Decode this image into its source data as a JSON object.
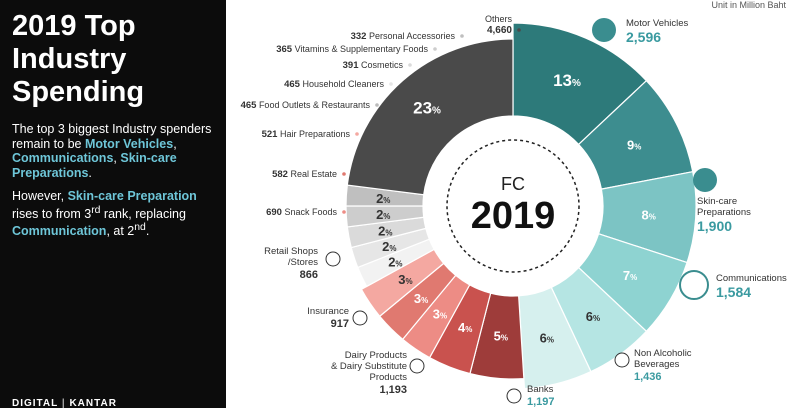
{
  "panel": {
    "title_line1": "2019 Top",
    "title_line2": "Industry",
    "title_line3": "Spending",
    "p1_text1": "The top 3 biggest Industry spenders remain to be ",
    "p1_hl1": "Motor Vehicles",
    "p1_text2": ", ",
    "p1_hl2": "Communications",
    "p1_text3": ", ",
    "p1_hl3": "Skin-care Preparations",
    "p1_text4": ".",
    "p2_text1": "However, ",
    "p2_hl1": "Skin-care Preparation",
    "p2_text2": " rises to from 3",
    "p2_sup": "rd",
    "p2_text3": " rank, replacing ",
    "p2_hl2": "Communication",
    "p2_text4": ", at 2",
    "p2_sup2": "nd",
    "p2_text5": ".",
    "footer_left": "DIGITAL",
    "footer_sep": "|",
    "footer_right": "KANTAR"
  },
  "unit_note": "Unit in Million Baht",
  "chart_data": {
    "type": "pie",
    "donut": true,
    "center_label_top": "FC",
    "center_label_main": "2019",
    "pct_suffix": "%",
    "slices": [
      {
        "name": "Motor Vehicles",
        "pct": 13,
        "value": "2,596",
        "color": "#2d7a7a",
        "icon": "car-icon"
      },
      {
        "name": "Skin-care Preparations",
        "pct": 9,
        "value": "1,900",
        "color": "#3d8d8f",
        "icon": "face-mask-icon"
      },
      {
        "name": "Communications",
        "pct": 8,
        "value": "1,584",
        "color": "#7cc4c4",
        "icon": "chat-bubble-icon"
      },
      {
        "name": "Non Alcoholic Beverages",
        "pct": 7,
        "value": "1,436",
        "color": "#8ed3d1",
        "icon": "drink-icon"
      },
      {
        "name": "Banks",
        "pct": 6,
        "value": "1,197",
        "color": "#b5e5e3",
        "icon": "bank-icon"
      },
      {
        "name": "Dairy Products & Dairy Substitute Products",
        "pct": 6,
        "value": "1,193",
        "color": "#d6f0ee",
        "icon": "milk-carton-icon"
      },
      {
        "name": "Insurance",
        "pct": 5,
        "value": "917",
        "color": "#9e3c3a",
        "icon": "shield-plus-icon"
      },
      {
        "name": "Retail Shops /Stores",
        "pct": 4,
        "value": "866",
        "color": "#c9524e",
        "icon": "store-icon"
      },
      {
        "name": "Snack Foods",
        "pct": 3,
        "value": "690",
        "color": "#ed8c85",
        "icon": ""
      },
      {
        "name": "Real Estate",
        "pct": 3,
        "value": "582",
        "color": "#e07970",
        "icon": ""
      },
      {
        "name": "Hair Preparations",
        "pct": 3,
        "value": "521",
        "color": "#f4a8a1",
        "icon": ""
      },
      {
        "name": "Food Outlets & Restaurants",
        "pct": 2,
        "value": "465",
        "color": "#f2f2f2",
        "icon": ""
      },
      {
        "name": "Household Cleaners",
        "pct": 2,
        "value": "465",
        "color": "#e6e6e6",
        "icon": ""
      },
      {
        "name": "Cosmetics",
        "pct": 2,
        "value": "391",
        "color": "#dadada",
        "icon": ""
      },
      {
        "name": "Vitamins & Supplementary Foods",
        "pct": 2,
        "value": "365",
        "color": "#cdcdcd",
        "icon": ""
      },
      {
        "name": "Personal Accessories",
        "pct": 2,
        "value": "332",
        "color": "#bfbfbf",
        "icon": ""
      },
      {
        "name": "Others",
        "pct": 23,
        "value": "4,660",
        "color": "#4a4a4a",
        "icon": ""
      }
    ]
  }
}
